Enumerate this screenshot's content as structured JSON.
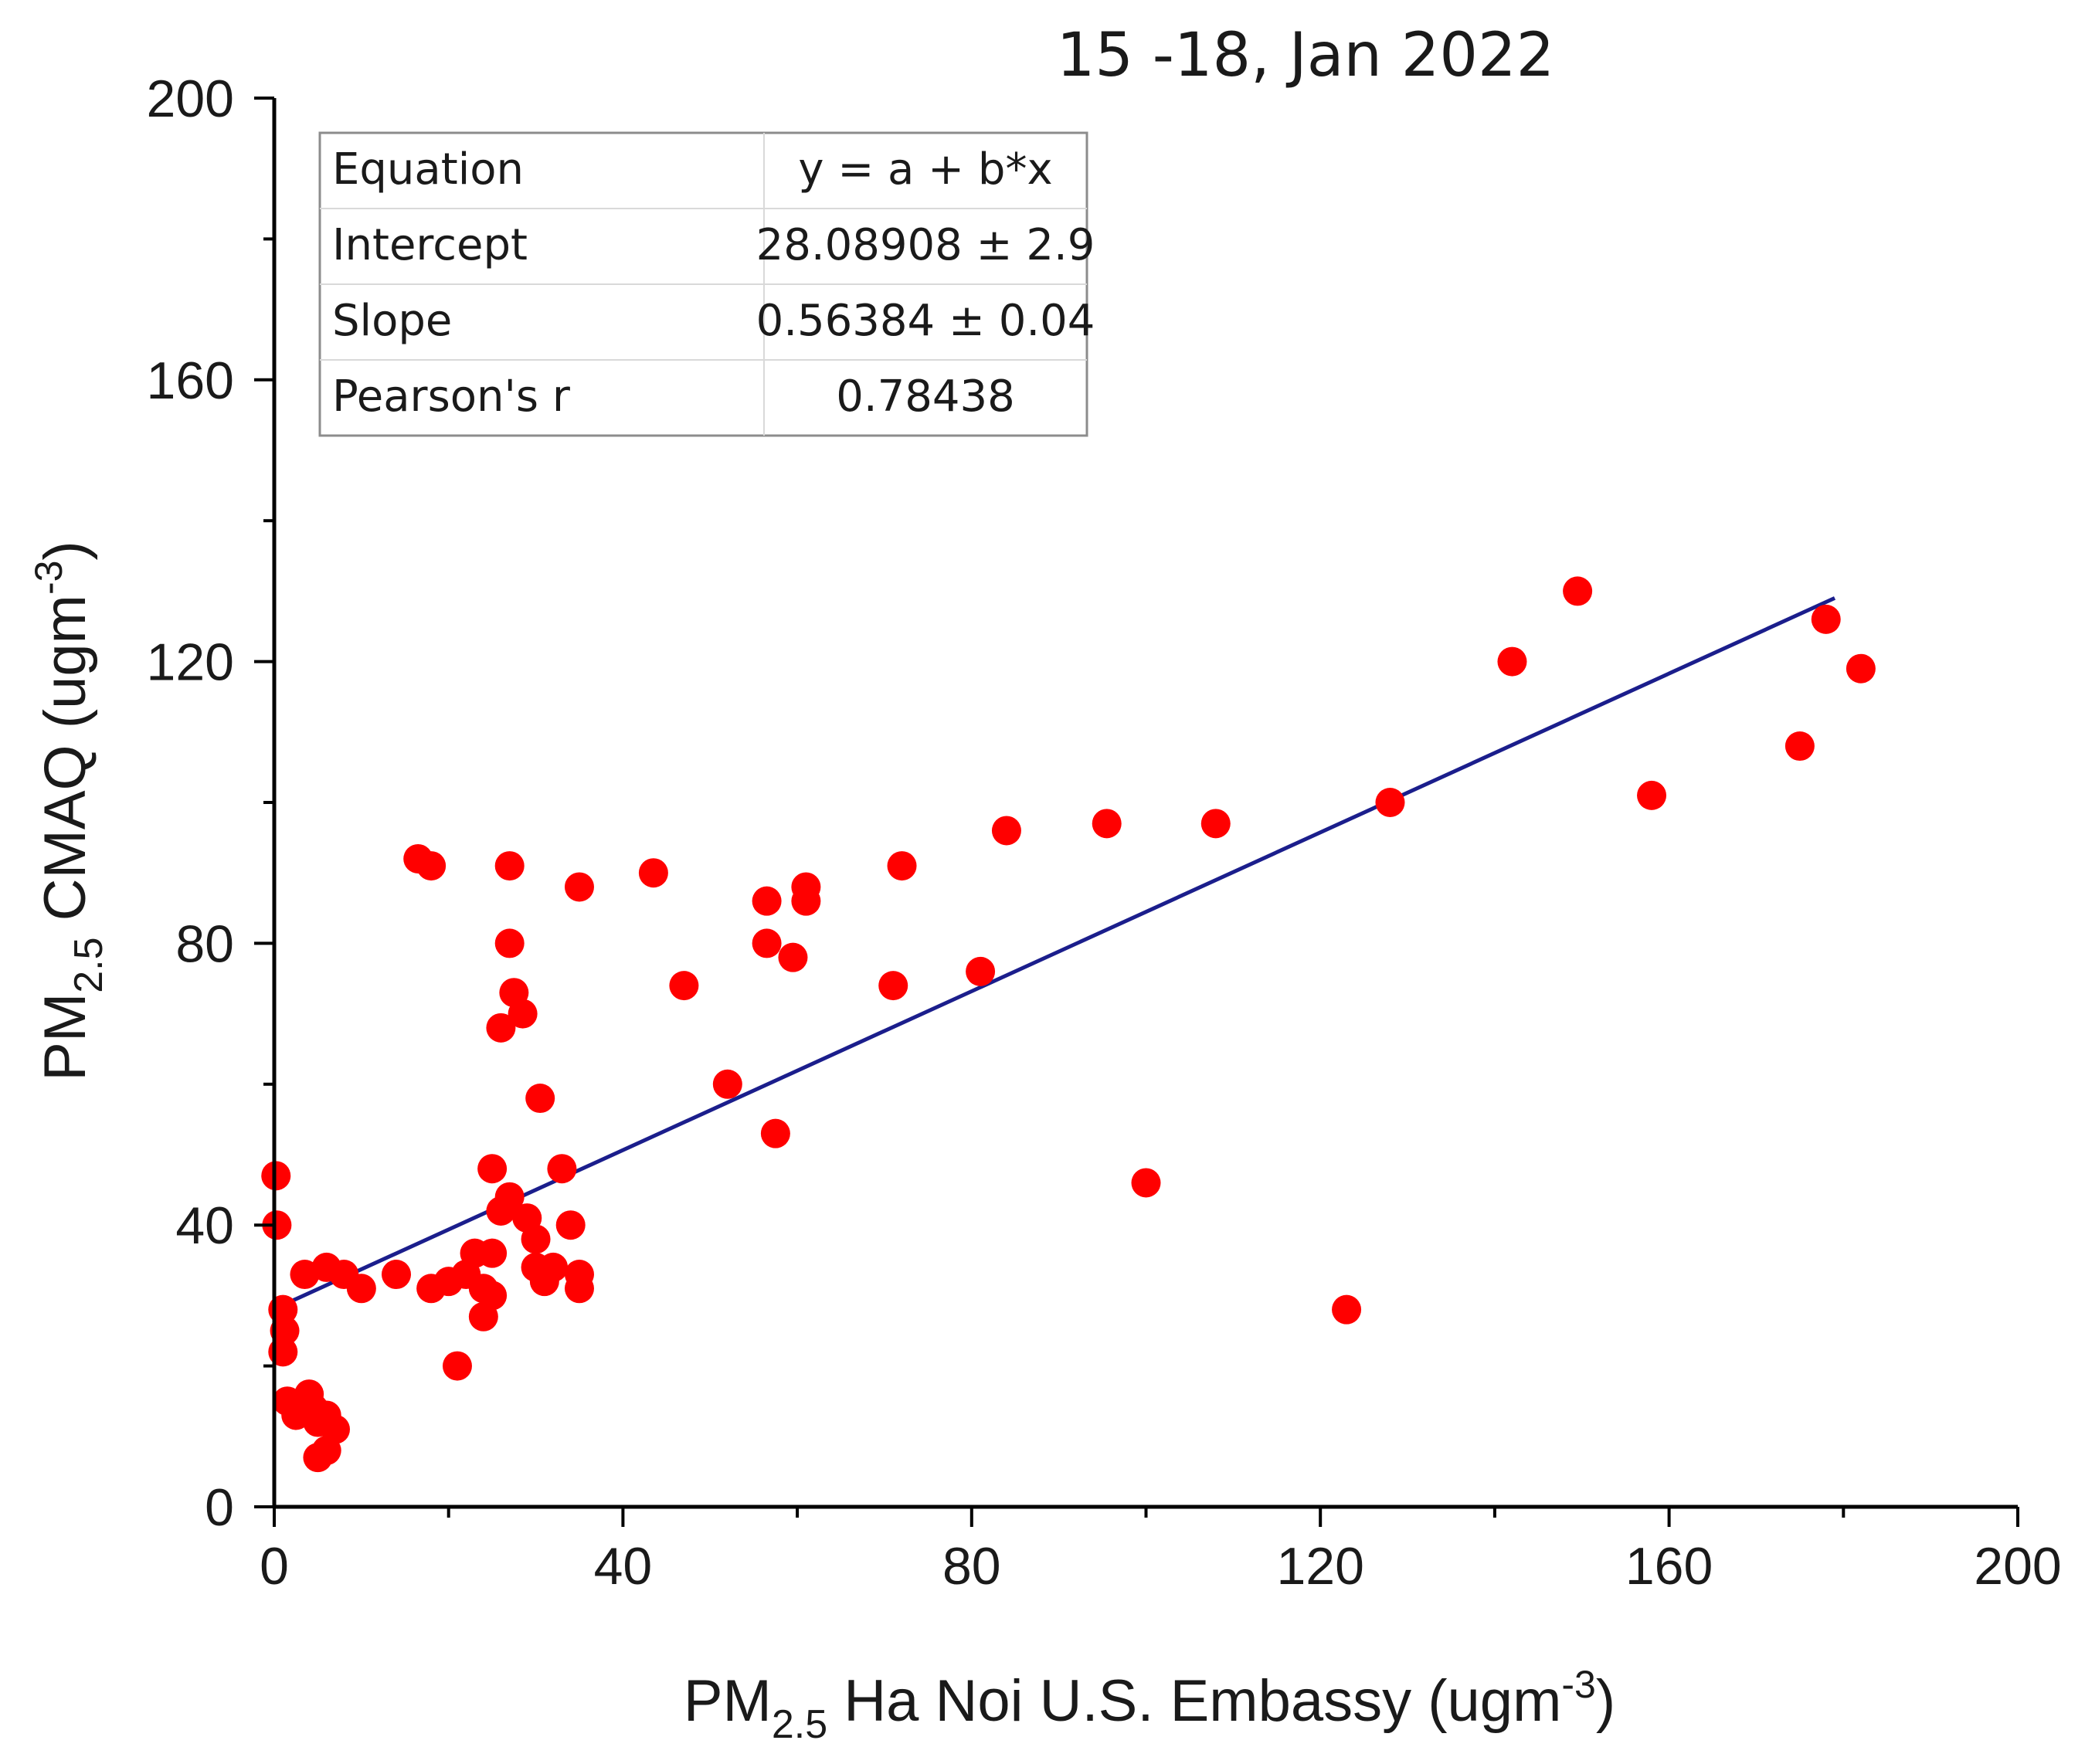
{
  "chart_data": {
    "type": "scatter",
    "title": "15 -18, Jan 2022",
    "xlabel": {
      "prefix": "PM",
      "sub": "2.5",
      "mid": " Ha Noi U.S. Embassy (ugm",
      "sup": "-3",
      "suffix": ")"
    },
    "ylabel": {
      "prefix": "PM",
      "sub": "2.5",
      "mid": " CMAQ (ugm",
      "sup": "-3",
      "suffix": ")"
    },
    "xlim": [
      0,
      200
    ],
    "ylim": [
      0,
      200
    ],
    "xticks": [
      0,
      40,
      80,
      120,
      160,
      200
    ],
    "yticks": [
      0,
      40,
      80,
      120,
      160,
      200
    ],
    "grid": false,
    "marker_color": "#ff0000",
    "line_color": "#1b1e8c",
    "fit": {
      "intercept": 28.08908,
      "slope": 0.56384,
      "x_range": [
        0,
        179
      ]
    },
    "stats_table": {
      "placement": "top-left",
      "rows": [
        [
          "Equation",
          "y = a + b*x"
        ],
        [
          "Intercept",
          "28.08908 ± 2.9"
        ],
        [
          "Slope",
          "0.56384 ± 0.04"
        ],
        [
          "Pearson's r",
          "0.78438"
        ]
      ]
    },
    "points": [
      [
        0.2,
        47
      ],
      [
        0.3,
        40
      ],
      [
        1,
        28
      ],
      [
        1.2,
        25
      ],
      [
        1,
        22
      ],
      [
        1.5,
        15
      ],
      [
        2.5,
        13
      ],
      [
        4,
        16
      ],
      [
        4.5,
        14
      ],
      [
        5,
        12
      ],
      [
        5,
        7
      ],
      [
        6,
        8
      ],
      [
        6,
        13
      ],
      [
        7,
        11
      ],
      [
        3.5,
        33
      ],
      [
        6,
        34
      ],
      [
        8,
        33
      ],
      [
        10,
        31
      ],
      [
        14,
        33
      ],
      [
        18,
        31
      ],
      [
        20,
        32
      ],
      [
        22,
        33
      ],
      [
        23,
        36
      ],
      [
        24,
        31
      ],
      [
        24,
        27
      ],
      [
        25,
        30
      ],
      [
        25,
        36
      ],
      [
        25,
        48
      ],
      [
        26,
        42
      ],
      [
        27,
        44
      ],
      [
        29,
        41
      ],
      [
        30,
        34
      ],
      [
        30,
        38
      ],
      [
        31,
        32
      ],
      [
        32,
        34
      ],
      [
        33,
        48
      ],
      [
        34,
        40
      ],
      [
        35,
        33
      ],
      [
        35,
        31
      ],
      [
        21,
        20
      ],
      [
        16.5,
        92
      ],
      [
        18,
        91
      ],
      [
        27,
        91
      ],
      [
        27,
        80
      ],
      [
        27.5,
        73
      ],
      [
        26,
        68
      ],
      [
        28.5,
        70
      ],
      [
        30.5,
        58
      ],
      [
        35,
        88
      ],
      [
        43.5,
        90
      ],
      [
        47,
        74
      ],
      [
        52,
        60
      ],
      [
        56.5,
        80
      ],
      [
        56.5,
        86
      ],
      [
        57.5,
        53
      ],
      [
        59.5,
        78
      ],
      [
        61,
        86
      ],
      [
        61,
        88
      ],
      [
        71,
        74
      ],
      [
        72,
        91
      ],
      [
        81,
        76
      ],
      [
        84,
        96
      ],
      [
        95.5,
        97
      ],
      [
        100,
        46
      ],
      [
        108,
        97
      ],
      [
        123,
        28
      ],
      [
        128,
        100
      ],
      [
        142,
        120
      ],
      [
        149.5,
        130
      ],
      [
        158,
        101
      ],
      [
        175,
        108
      ],
      [
        178,
        126
      ],
      [
        182,
        119
      ]
    ]
  }
}
